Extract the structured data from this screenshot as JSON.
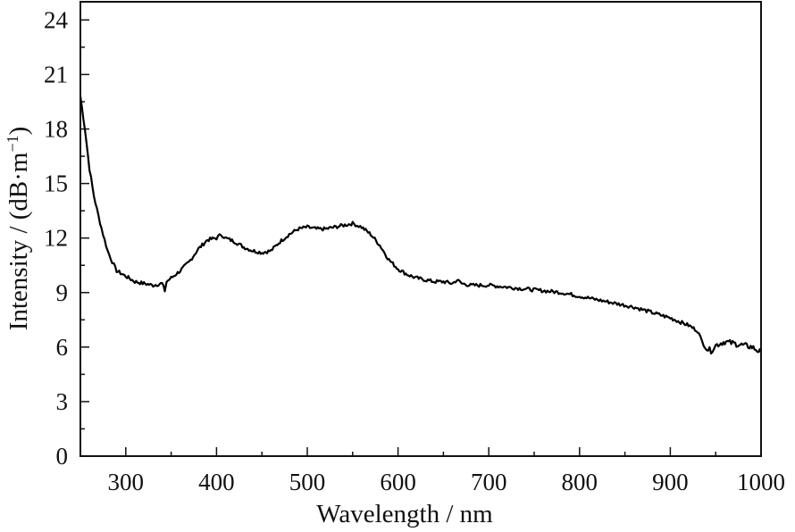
{
  "chart_data": {
    "type": "line",
    "xlabel": "Wavelength / nm",
    "ylabel": "Intensity / (dB·m",
    "ylabel_sup": "−1",
    "ylabel_close": ")",
    "xlim": [
      250,
      1000
    ],
    "ylim": [
      0,
      25
    ],
    "x_ticks": [
      300,
      400,
      500,
      600,
      700,
      800,
      900,
      1000
    ],
    "y_ticks": [
      0,
      3,
      6,
      9,
      12,
      15,
      18,
      21,
      24
    ],
    "grid": false,
    "line_color": "#000000",
    "series": [
      {
        "x": [
          250,
          255,
          260,
          265,
          270,
          275,
          280,
          285,
          290,
          300,
          310,
          320,
          330,
          340,
          343,
          345,
          350,
          360,
          370,
          380,
          390,
          400,
          405,
          410,
          420,
          430,
          440,
          450,
          460,
          470,
          480,
          490,
          500,
          510,
          520,
          530,
          540,
          550,
          555,
          560,
          570,
          580,
          590,
          600,
          610,
          620,
          630,
          640,
          650,
          660,
          665,
          670,
          680,
          700,
          720,
          740,
          760,
          780,
          800,
          820,
          840,
          860,
          880,
          900,
          910,
          920,
          930,
          935,
          940,
          945,
          950,
          960,
          970,
          980,
          990,
          1000
        ],
        "y": [
          19.8,
          18.0,
          15.8,
          14.3,
          13.2,
          12.2,
          11.3,
          10.7,
          10.2,
          9.9,
          9.6,
          9.5,
          9.4,
          9.5,
          9.1,
          9.6,
          9.8,
          10.2,
          10.7,
          11.4,
          11.9,
          12.0,
          12.2,
          12.0,
          11.8,
          11.5,
          11.3,
          11.2,
          11.3,
          11.8,
          12.2,
          12.5,
          12.6,
          12.5,
          12.5,
          12.6,
          12.7,
          12.8,
          12.7,
          12.6,
          12.2,
          11.6,
          10.8,
          10.3,
          10.0,
          9.8,
          9.7,
          9.6,
          9.6,
          9.5,
          9.7,
          9.5,
          9.4,
          9.4,
          9.3,
          9.2,
          9.1,
          9.0,
          8.8,
          8.6,
          8.4,
          8.2,
          7.9,
          7.6,
          7.4,
          7.2,
          6.9,
          6.3,
          5.9,
          5.8,
          6.1,
          6.3,
          6.2,
          6.1,
          6.0,
          5.7
        ]
      }
    ]
  }
}
